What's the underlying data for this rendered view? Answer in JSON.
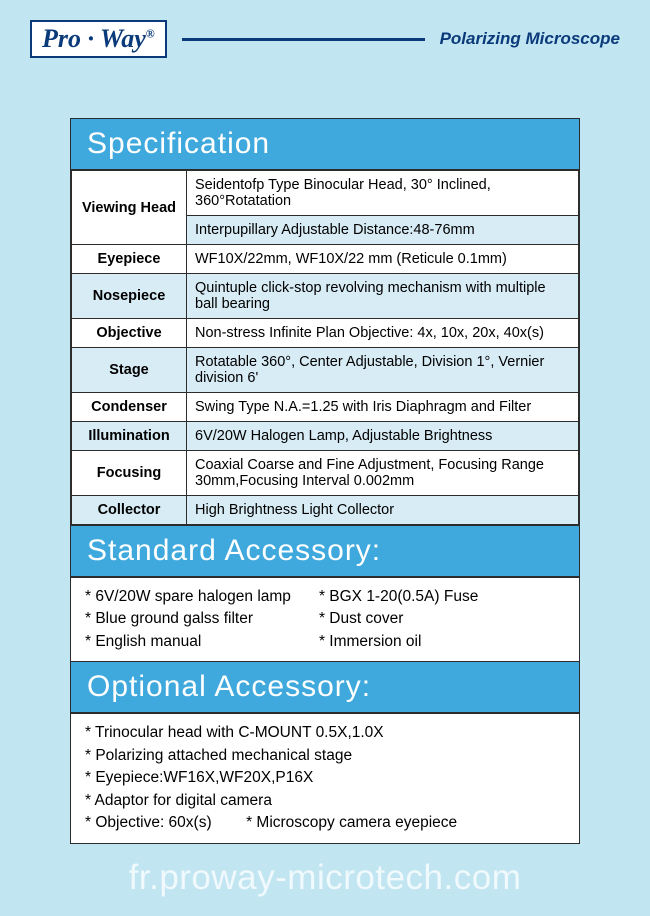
{
  "header": {
    "logo_html": "Pro · Way",
    "title": "Polarizing Microscope"
  },
  "sections": {
    "spec_title": "Specification",
    "standard_title": "Standard Accessory:",
    "optional_title": "Optional Accessory:"
  },
  "spec_rows": [
    {
      "label": "Viewing Head",
      "value": "Seidentofp Type Binocular Head, 30° Inclined, 360°Rotatation",
      "rowspan": 2,
      "shade": false
    },
    {
      "label": "",
      "value": "Interpupillary Adjustable Distance:48-76mm",
      "shade": true,
      "continued": true
    },
    {
      "label": "Eyepiece",
      "value": "WF10X/22mm, WF10X/22 mm (Reticule 0.1mm)",
      "shade": false
    },
    {
      "label": "Nosepiece",
      "value": "Quintuple click-stop revolving mechanism with multiple ball bearing",
      "shade": true
    },
    {
      "label": "Objective",
      "value": "Non-stress Infinite Plan Objective: 4x, 10x, 20x, 40x(s)",
      "shade": false
    },
    {
      "label": "Stage",
      "value": "Rotatable 360°, Center Adjustable, Division 1°, Vernier division 6'",
      "shade": true
    },
    {
      "label": "Condenser",
      "value": "Swing Type N.A.=1.25 with Iris Diaphragm and Filter",
      "shade": false
    },
    {
      "label": "Illumination",
      "value": "6V/20W Halogen Lamp, Adjustable Brightness",
      "shade": true
    },
    {
      "label": "Focusing",
      "value": "Coaxial Coarse and Fine Adjustment, Focusing Range 30mm,Focusing Interval 0.002mm",
      "shade": false
    },
    {
      "label": "Collector",
      "value": "High Brightness Light Collector",
      "shade": true
    }
  ],
  "standard_accessory": {
    "col1": [
      "* 6V/20W spare halogen lamp",
      "* Blue ground galss filter",
      "* English manual"
    ],
    "col2": [
      "* BGX 1-20(0.5A) Fuse",
      "* Dust cover",
      "* Immersion oil"
    ]
  },
  "optional_accessory": [
    "* Trinocular head with C-MOUNT 0.5X,1.0X",
    "* Polarizing attached mechanical stage",
    "* Eyepiece:WF16X,WF20X,P16X",
    "* Adaptor for digital camera",
    "* Objective: 60x(s)        * Microscopy camera eyepiece"
  ],
  "watermark": "fr.proway-microtech.com"
}
